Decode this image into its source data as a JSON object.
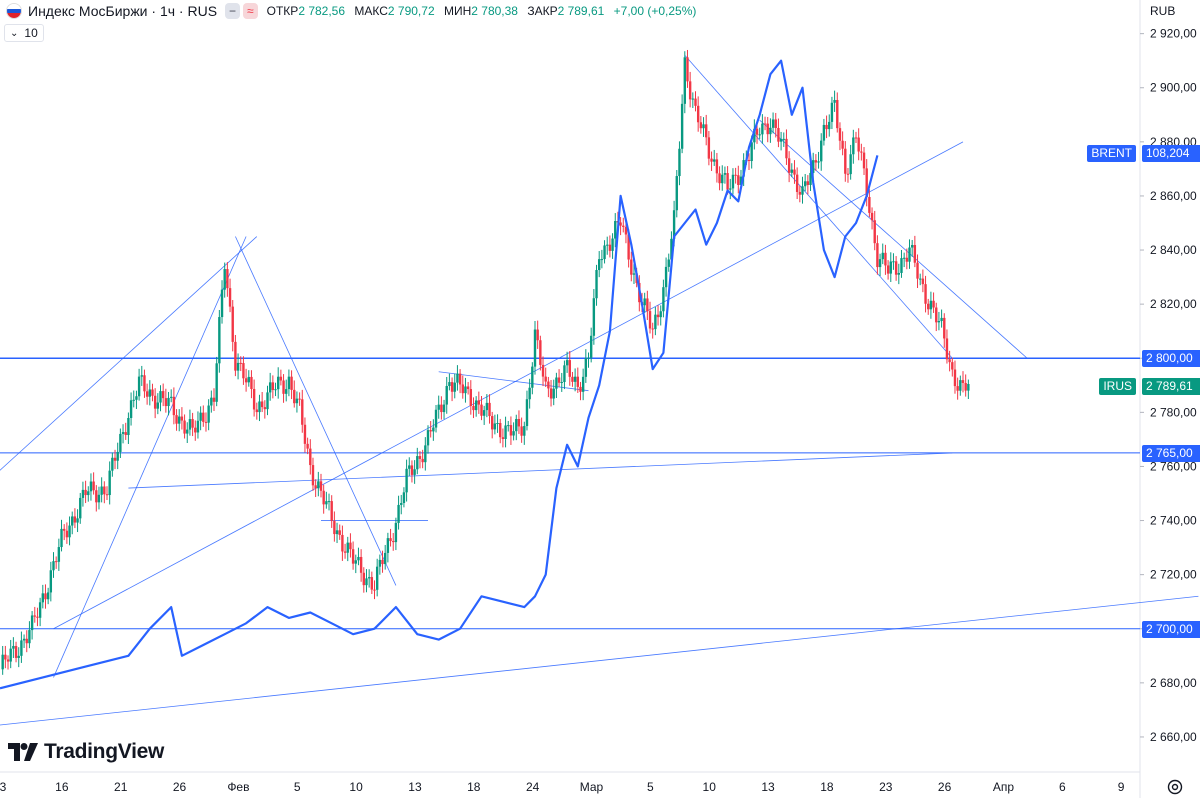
{
  "header": {
    "symbol": "Индекс МосБиржи · 1ч · RUS",
    "btn_a": "−",
    "btn_b": "≈",
    "open_label": "ОТКР",
    "open_value": "2 782,56",
    "high_label": "МАКС",
    "high_value": "2 790,72",
    "low_label": "МИН",
    "low_value": "2 780,38",
    "close_label": "ЗАКР",
    "close_value": "2 789,61",
    "change": "+7,00 (+0,25%)"
  },
  "volume_label": "10",
  "currency": "RUB",
  "logo_text": "TradingView",
  "colors": {
    "up": "#089981",
    "down": "#f23645",
    "overlay": "#2962ff",
    "level": "#2962ff"
  },
  "price_tags": [
    {
      "label": "",
      "value": "2 800,00",
      "price": 2800,
      "color": "#2962ff"
    },
    {
      "label": "",
      "value": "2 765,00",
      "price": 2765,
      "color": "#2962ff"
    },
    {
      "label": "",
      "value": "2 700,00",
      "price": 2700,
      "color": "#2962ff"
    },
    {
      "label": "IRUS",
      "value": "2 789,61",
      "price": 2789.61,
      "color": "#089981"
    },
    {
      "label": "BRENT",
      "value": "108,204",
      "price": 2876,
      "color": "#2962ff"
    }
  ],
  "chart_data": {
    "type": "candlestick",
    "title": "Индекс МосБиржи · 1ч · RUS",
    "y_axis": {
      "ylim": [
        2650,
        2928
      ],
      "ticks": [
        2920,
        2900,
        2880,
        2860,
        2840,
        2820,
        2800,
        2780,
        2760,
        2740,
        2720,
        2700,
        2680,
        2660
      ],
      "tick_labels": [
        "2 920,00",
        "2 900,00",
        "2 880,00",
        "2 860,00",
        "2 840,00",
        "2 820,00",
        "2 800,00",
        "2 780,00",
        "2 760,00",
        "2 740,00",
        "2 720,00",
        "2 700,00",
        "2 680,00",
        "2 660,00"
      ]
    },
    "x_axis": {
      "ticks": [
        0,
        5.5,
        11,
        16.5,
        22,
        27.5,
        33,
        38.5,
        44,
        49.5,
        55,
        60.5,
        66,
        71.5,
        77,
        82.5,
        88,
        93.5,
        99,
        104.5
      ],
      "tick_labels": [
        "3",
        "16",
        "21",
        "26",
        "Фев",
        "5",
        "10",
        "13",
        "18",
        "24",
        "Мар",
        "5",
        "10",
        "13",
        "18",
        "23",
        "26",
        "Апр",
        "6",
        "9"
      ]
    },
    "horizontal_levels": [
      2800,
      2765,
      2700
    ],
    "candles_anchor_prices": [
      [
        0,
        2685
      ],
      [
        3,
        2700
      ],
      [
        6,
        2735
      ],
      [
        8,
        2750
      ],
      [
        10,
        2752
      ],
      [
        12,
        2780
      ],
      [
        13,
        2790
      ],
      [
        16,
        2782
      ],
      [
        18,
        2772
      ],
      [
        20,
        2786
      ],
      [
        21,
        2835
      ],
      [
        22,
        2800
      ],
      [
        24,
        2782
      ],
      [
        26,
        2790
      ],
      [
        27,
        2792
      ],
      [
        28,
        2780
      ],
      [
        29,
        2760
      ],
      [
        31,
        2740
      ],
      [
        33,
        2725
      ],
      [
        35,
        2716
      ],
      [
        37,
        2740
      ],
      [
        38,
        2755
      ],
      [
        40,
        2770
      ],
      [
        41,
        2780
      ],
      [
        42,
        2792
      ],
      [
        44,
        2786
      ],
      [
        46,
        2776
      ],
      [
        48,
        2772
      ],
      [
        49,
        2776
      ],
      [
        50,
        2808
      ],
      [
        51,
        2788
      ],
      [
        53,
        2795
      ],
      [
        54,
        2790
      ],
      [
        55,
        2800
      ],
      [
        56,
        2838
      ],
      [
        58,
        2850
      ],
      [
        59,
        2835
      ],
      [
        60,
        2820
      ],
      [
        61,
        2810
      ],
      [
        62,
        2826
      ],
      [
        63,
        2850
      ],
      [
        64,
        2910
      ],
      [
        65,
        2890
      ],
      [
        66,
        2880
      ],
      [
        67,
        2870
      ],
      [
        68,
        2862
      ],
      [
        70,
        2875
      ],
      [
        71,
        2885
      ],
      [
        72,
        2888
      ],
      [
        74,
        2870
      ],
      [
        75,
        2860
      ],
      [
        76,
        2870
      ],
      [
        77,
        2885
      ],
      [
        78,
        2892
      ],
      [
        79,
        2870
      ],
      [
        80,
        2882
      ],
      [
        81,
        2862
      ],
      [
        82,
        2838
      ],
      [
        83,
        2832
      ],
      [
        84,
        2835
      ],
      [
        85,
        2840
      ],
      [
        86,
        2828
      ],
      [
        87,
        2820
      ],
      [
        88,
        2810
      ],
      [
        89,
        2795
      ],
      [
        90,
        2788
      ],
      [
        90.5,
        2789.61
      ]
    ],
    "series": [
      {
        "name": "IRUS",
        "last_value": 2789.61
      },
      {
        "name": "BRENT",
        "last_value": 108.204,
        "values_in_price_scale": [
          [
            0,
            2678
          ],
          [
            4,
            2682
          ],
          [
            8,
            2686
          ],
          [
            12,
            2690
          ],
          [
            14,
            2700
          ],
          [
            16,
            2708
          ],
          [
            17,
            2690
          ],
          [
            19,
            2694
          ],
          [
            21,
            2698
          ],
          [
            23,
            2702
          ],
          [
            25,
            2708
          ],
          [
            27,
            2704
          ],
          [
            29,
            2706
          ],
          [
            31,
            2702
          ],
          [
            33,
            2698
          ],
          [
            35,
            2700
          ],
          [
            37,
            2708
          ],
          [
            39,
            2698
          ],
          [
            41,
            2696
          ],
          [
            43,
            2700
          ],
          [
            45,
            2712
          ],
          [
            47,
            2710
          ],
          [
            49,
            2708
          ],
          [
            50,
            2712
          ],
          [
            51,
            2720
          ],
          [
            52,
            2752
          ],
          [
            53,
            2768
          ],
          [
            54,
            2760
          ],
          [
            55,
            2778
          ],
          [
            56,
            2790
          ],
          [
            57,
            2810
          ],
          [
            58,
            2860
          ],
          [
            59,
            2842
          ],
          [
            60,
            2820
          ],
          [
            61,
            2796
          ],
          [
            62,
            2802
          ],
          [
            63,
            2845
          ],
          [
            64,
            2850
          ],
          [
            65,
            2855
          ],
          [
            66,
            2842
          ],
          [
            67,
            2850
          ],
          [
            68,
            2862
          ],
          [
            69,
            2858
          ],
          [
            70,
            2878
          ],
          [
            71,
            2890
          ],
          [
            72,
            2905
          ],
          [
            73,
            2910
          ],
          [
            74,
            2890
          ],
          [
            75,
            2900
          ],
          [
            76,
            2865
          ],
          [
            77,
            2840
          ],
          [
            78,
            2830
          ],
          [
            79,
            2845
          ],
          [
            80,
            2850
          ],
          [
            81,
            2860
          ],
          [
            82,
            2875
          ]
        ]
      }
    ],
    "trendlines": [
      [
        [
          -1,
          2755
        ],
        [
          24,
          2845
        ]
      ],
      [
        [
          5,
          2682
        ],
        [
          23,
          2845
        ]
      ],
      [
        [
          -1,
          2664
        ],
        [
          112,
          2712
        ]
      ],
      [
        [
          12,
          2752
        ],
        [
          89,
          2765
        ]
      ],
      [
        [
          5,
          2700
        ],
        [
          90,
          2880
        ]
      ],
      [
        [
          22,
          2845
        ],
        [
          37,
          2716
        ]
      ],
      [
        [
          64,
          2912
        ],
        [
          89,
          2800
        ]
      ],
      [
        [
          71,
          2888
        ],
        [
          96,
          2800
        ]
      ],
      [
        [
          41,
          2795
        ],
        [
          55,
          2788
        ]
      ],
      [
        [
          30,
          2740
        ],
        [
          40,
          2740
        ]
      ]
    ],
    "annotations": [
      "BRENT 108,204",
      "IRUS 2 789,61"
    ]
  }
}
